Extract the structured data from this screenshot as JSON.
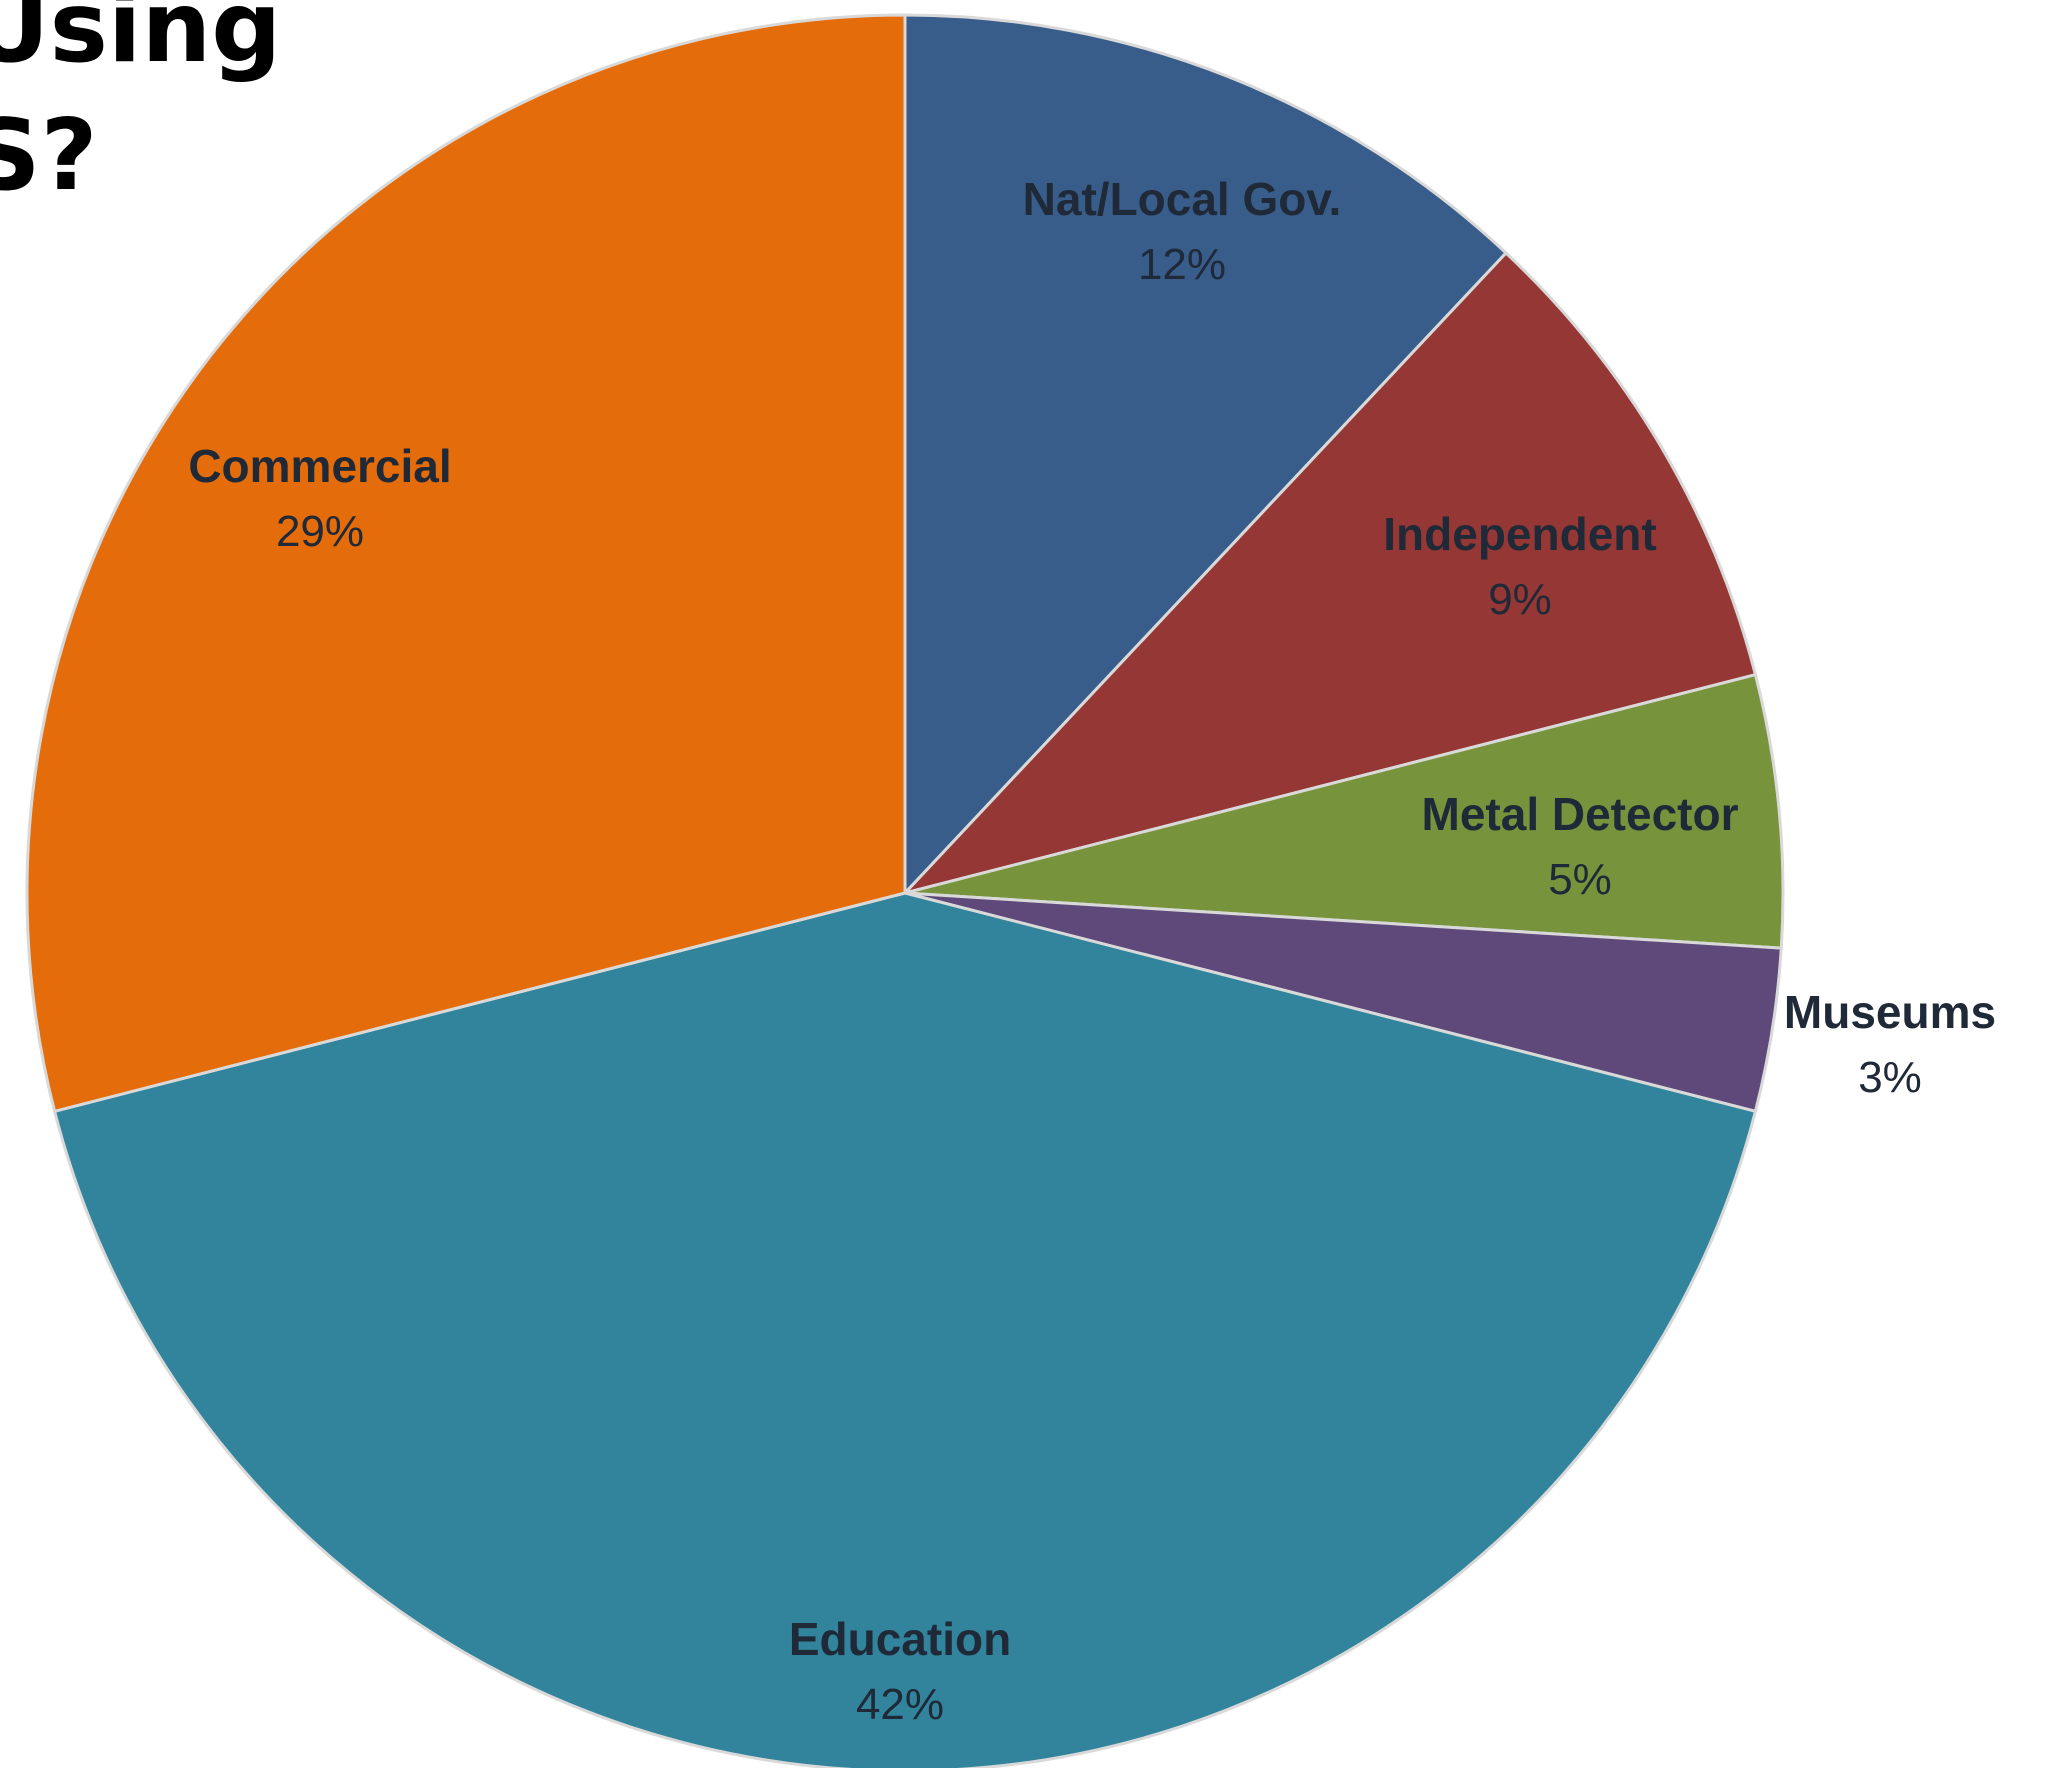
{
  "title_lines": [
    "Using",
    "S?"
  ],
  "chart_data": {
    "type": "pie",
    "start_angle_deg": 0,
    "direction": "clockwise",
    "slices": [
      {
        "label": "Nat/Local Gov.",
        "value": 12,
        "display": "12%",
        "color": "#385d8a"
      },
      {
        "label": "Independent",
        "value": 9,
        "display": "9%",
        "color": "#953735"
      },
      {
        "label": "Metal Detector",
        "value": 5,
        "display": "5%",
        "color": "#77933c"
      },
      {
        "label": "Museums",
        "value": 3,
        "display": "3%",
        "color": "#5f497a"
      },
      {
        "label": "Education",
        "value": 42,
        "display": "42%",
        "color": "#31849b"
      },
      {
        "label": "Commercial",
        "value": 29,
        "display": "29%",
        "color": "#e46c0a"
      }
    ]
  }
}
